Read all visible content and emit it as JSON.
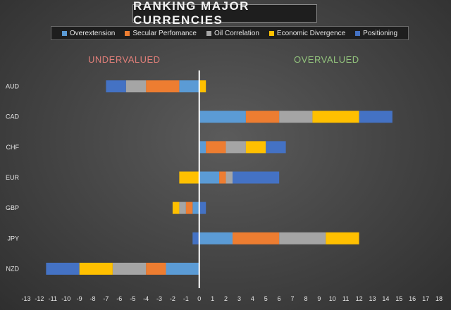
{
  "chart_data": {
    "type": "bar",
    "orientation": "horizontal",
    "stacked": true,
    "title": "RANKING MAJOR CURRENCIES",
    "categories": [
      "AUD",
      "CAD",
      "CHF",
      "EUR",
      "GBP",
      "JPY",
      "NZD"
    ],
    "series": [
      {
        "name": "Overextension",
        "color": "#5b9bd5",
        "values": [
          -1.5,
          3.5,
          0.5,
          1.5,
          -0.5,
          2.5,
          -2.5
        ]
      },
      {
        "name": "Secular Perfomance",
        "color": "#ed7d31",
        "values": [
          -2.5,
          2.5,
          1.5,
          0.5,
          -0.5,
          3.5,
          -1.5
        ]
      },
      {
        "name": "Oil Correlation",
        "color": "#a5a5a5",
        "values": [
          -1.5,
          2.5,
          1.5,
          0.5,
          -0.5,
          3.5,
          -2.5
        ]
      },
      {
        "name": "Economic Divergence",
        "color": "#ffc000",
        "values": [
          0.5,
          3.5,
          1.5,
          -1.5,
          -0.5,
          2.5,
          -2.5
        ]
      },
      {
        "name": "Positioning",
        "color": "#4472c4",
        "values": [
          -1.5,
          2.5,
          1.5,
          3.5,
          0.5,
          -0.5,
          -2.5
        ]
      }
    ],
    "xlim": [
      -13,
      18
    ],
    "xticks": [
      "-13",
      "-12",
      "-11",
      "-10",
      "-9",
      "-8",
      "-7",
      "-6",
      "-5",
      "-4",
      "-3",
      "-2",
      "-1",
      "0",
      "1",
      "2",
      "3",
      "4",
      "5",
      "6",
      "7",
      "8",
      "9",
      "10",
      "11",
      "12",
      "13",
      "14",
      "15",
      "16",
      "17",
      "18"
    ],
    "annotations": {
      "left": "UNDERVALUED",
      "right": "OVERVALUED"
    },
    "grid": false,
    "legend_position": "top"
  }
}
